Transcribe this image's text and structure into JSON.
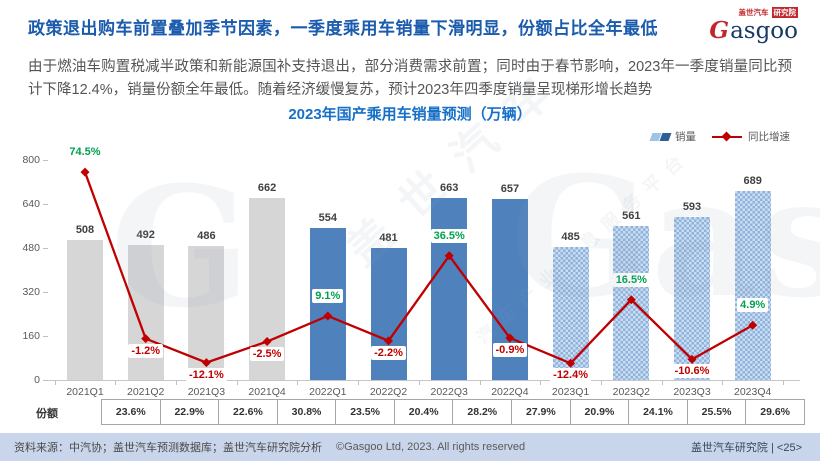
{
  "header": {
    "title": "政策退出购车前置叠加季节因素，一季度乘用车销量下滑明显，份额占比全年最低",
    "logo": {
      "brand_cn": "盖世汽车",
      "dept_cn": "研究院",
      "en_g": "G",
      "en_rest": "asgoo"
    }
  },
  "intro": "由于燃油车购置税减半政策和新能源国补支持退出，部分消费需求前置；同时由于春节影响，2023年一季度销量同比预计下降12.4%，销量份额全年最低。随着经济缓慢复苏，预计2023年四季度销量呈现梯形增长趋势",
  "chart_data": {
    "type": "bar",
    "title": "2023年国产乘用车销量预测（万辆）",
    "categories": [
      "2021Q1",
      "2021Q2",
      "2021Q3",
      "2021Q4",
      "2022Q1",
      "2022Q2",
      "2022Q3",
      "2022Q4",
      "2023Q1",
      "2023Q2",
      "2023Q3",
      "2023Q4"
    ],
    "series": [
      {
        "name": "销量",
        "type": "bar",
        "values": [
          508,
          492,
          486,
          662,
          554,
          481,
          663,
          657,
          485,
          561,
          593,
          689
        ]
      },
      {
        "name": "同比增速",
        "type": "line",
        "unit": "%",
        "values": [
          74.5,
          -1.2,
          -12.1,
          -2.5,
          9.1,
          -2.2,
          36.5,
          -0.9,
          -12.4,
          16.5,
          -10.6,
          4.9
        ]
      }
    ],
    "ylim": [
      0,
      800
    ],
    "yticks": [
      0,
      160,
      320,
      480,
      640,
      800
    ],
    "secondary_ylim": [
      -20,
      80
    ],
    "legend_position": "top-right",
    "grid": false,
    "colors": {
      "bar_2021": "#d6d6d6",
      "bar_2022": "#4f81bd",
      "bar_2023": "#cbddf2",
      "line": "#c00000",
      "positive_label": "#00a050",
      "negative_label": "#c00000"
    }
  },
  "share": {
    "label": "份额",
    "values": [
      "23.6%",
      "22.9%",
      "22.6%",
      "30.8%",
      "23.5%",
      "20.4%",
      "28.2%",
      "27.9%",
      "20.9%",
      "24.1%",
      "25.5%",
      "29.6%"
    ]
  },
  "footer": {
    "source": "资料来源：中汽协；盖世汽车预测数据库；盖世汽车研究院分析",
    "copyright": "©Gasgoo Ltd, 2023. All rights reserved",
    "right": "盖世汽车研究院 | <25>"
  },
  "watermark": {
    "en": "Gasgoo",
    "en_g": "G",
    "cn": "盖世汽车",
    "cn2": "汽车产业信息服务平台"
  }
}
